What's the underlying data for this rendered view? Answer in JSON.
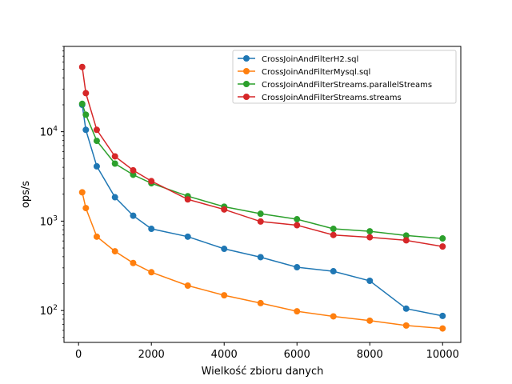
{
  "chart_data": {
    "type": "line",
    "title": "",
    "xlabel": "Wielkość zbioru danych",
    "ylabel": "ops/s",
    "xlim": [
      -400,
      10500
    ],
    "ylim": [
      44,
      90000
    ],
    "y_scale": "log",
    "x_ticks": [
      0,
      2000,
      4000,
      6000,
      8000,
      10000
    ],
    "y_ticks": [
      100,
      1000,
      10000
    ],
    "y_tick_labels": [
      {
        "base": "10",
        "exp": "2"
      },
      {
        "base": "10",
        "exp": "3"
      },
      {
        "base": "10",
        "exp": "4"
      }
    ],
    "grid": false,
    "legend_position": "top-right",
    "x": [
      100,
      200,
      500,
      1000,
      1500,
      2000,
      3000,
      4000,
      5000,
      6000,
      7000,
      8000,
      9000,
      10000
    ],
    "series": [
      {
        "name": "CrossJoinAndFilterH2.sql",
        "color": "#1f77b4",
        "values": [
          20000,
          10500,
          4100,
          1850,
          1150,
          820,
          670,
          490,
          395,
          305,
          275,
          215,
          105,
          87
        ]
      },
      {
        "name": "CrossJoinAndFilterMysql.sql",
        "color": "#ff7f0e",
        "values": [
          2100,
          1400,
          670,
          460,
          340,
          268,
          190,
          148,
          121,
          98,
          86,
          77,
          68,
          63
        ]
      },
      {
        "name": "CrossJoinAndFilterStreams.parallelStreams",
        "color": "#2ca02c",
        "values": [
          20500,
          15500,
          7900,
          4400,
          3300,
          2650,
          1900,
          1450,
          1210,
          1050,
          820,
          770,
          690,
          640
        ]
      },
      {
        "name": "CrossJoinAndFilterStreams.streams",
        "color": "#d62728",
        "values": [
          53000,
          27000,
          10500,
          5300,
          3700,
          2800,
          1750,
          1350,
          990,
          900,
          700,
          660,
          610,
          520
        ]
      }
    ]
  }
}
